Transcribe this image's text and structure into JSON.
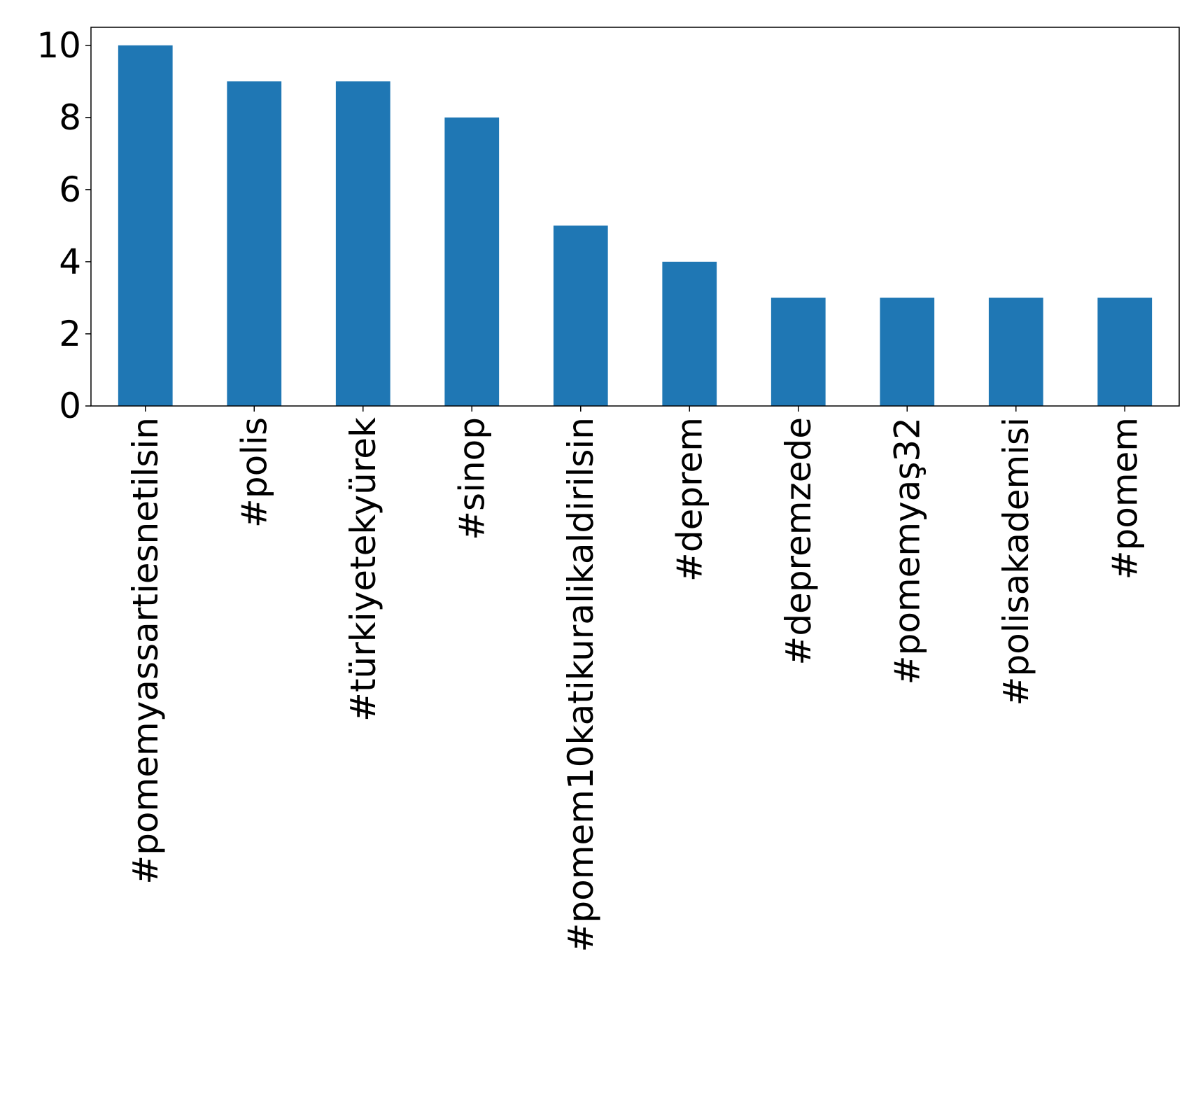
{
  "chart_data": {
    "type": "bar",
    "categories": [
      "#pomemyassartiesnetilsin",
      "#polis",
      "#türkiyetekyürek",
      "#sinop",
      "#pomem10katikuralikaldirilsin",
      "#deprem",
      "#depremzede",
      "#pomemyaş32",
      "#polisakademisi",
      "#pomem"
    ],
    "values": [
      10,
      9,
      9,
      8,
      5,
      4,
      3,
      3,
      3,
      3
    ],
    "title": "",
    "xlabel": "",
    "ylabel": "",
    "ylim": [
      0,
      10.5
    ],
    "yticks": [
      "0",
      "2",
      "4",
      "6",
      "8",
      "10"
    ],
    "grid": false,
    "legend": "none",
    "bar_color": "#1f77b4",
    "x_tick_rotation": "vertical"
  }
}
